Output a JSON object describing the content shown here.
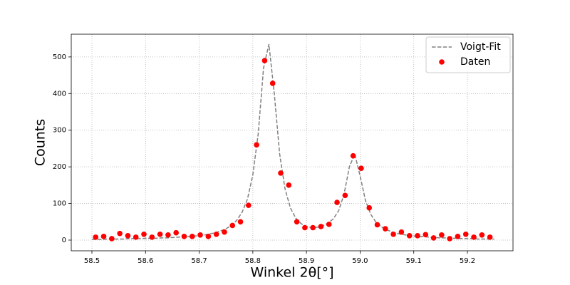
{
  "chart_data": {
    "type": "scatter",
    "xlabel": "Winkel 2θ[°]",
    "ylabel": "Counts",
    "xlim": [
      58.4615,
      59.285
    ],
    "ylim": [
      -29.2,
      562
    ],
    "xticks": [
      58.5,
      58.6,
      58.7,
      58.8,
      58.9,
      {
        "value": 59,
        "label": "59.0"
      },
      59.1,
      59.2
    ],
    "yticks": [
      0,
      100,
      200,
      300,
      400,
      500
    ],
    "grid": true,
    "legend": "upper right",
    "series": [
      {
        "name": "Voigt-Fit",
        "type": "line",
        "linestyle": "dashed",
        "color": "#808080",
        "x": [
          58.5,
          58.51,
          58.52,
          58.53,
          58.54,
          58.55,
          58.56,
          58.57,
          58.58,
          58.59,
          58.6,
          58.61,
          58.62,
          58.63,
          58.64,
          58.65,
          58.66,
          58.67,
          58.68,
          58.69,
          58.7,
          58.71,
          58.72,
          58.73,
          58.74,
          58.75,
          58.76,
          58.77,
          58.78,
          58.79,
          58.8,
          58.81,
          58.82,
          58.83,
          58.84,
          58.85,
          58.86,
          58.87,
          58.88,
          58.89,
          58.9,
          58.91,
          58.92,
          58.93,
          58.94,
          58.95,
          58.96,
          58.97,
          58.98,
          58.99,
          59.0,
          59.01,
          59.02,
          59.03,
          59.04,
          59.05,
          59.06,
          59.07,
          59.08,
          59.09,
          59.1,
          59.11,
          59.12,
          59.13,
          59.14,
          59.15,
          59.16,
          59.17,
          59.18,
          59.19,
          59.2,
          59.21,
          59.22,
          59.23,
          59.24,
          59.25
        ],
        "values": [
          2,
          2,
          2,
          3,
          3,
          3,
          3,
          4,
          4,
          4,
          5,
          5,
          5,
          6,
          6,
          7,
          8,
          9,
          10,
          11,
          12,
          14,
          17,
          20,
          25,
          31,
          40,
          54,
          76,
          112,
          178,
          290,
          470,
          535,
          400,
          235,
          140,
          88,
          60,
          45,
          37,
          34,
          35,
          39,
          46,
          58,
          80,
          125,
          200,
          235,
          175,
          108,
          70,
          48,
          36,
          28,
          22,
          18,
          15,
          13,
          11,
          10,
          9,
          8,
          7,
          6,
          6,
          5,
          5,
          4,
          4,
          4,
          3,
          3,
          3,
          3
        ]
      },
      {
        "name": "Daten",
        "type": "scatter",
        "color": "#ff0000",
        "x": [
          58.507,
          58.522,
          58.537,
          58.552,
          58.567,
          58.582,
          58.597,
          58.612,
          58.627,
          58.642,
          58.657,
          58.672,
          58.687,
          58.702,
          58.717,
          58.732,
          58.747,
          58.762,
          58.777,
          58.792,
          58.807,
          58.822,
          58.837,
          58.852,
          58.867,
          58.882,
          58.897,
          58.912,
          58.927,
          58.942,
          58.957,
          58.972,
          58.987,
          59.002,
          59.017,
          59.032,
          59.047,
          59.062,
          59.077,
          59.092,
          59.107,
          59.122,
          59.137,
          59.152,
          59.167,
          59.182,
          59.197,
          59.212,
          59.227,
          59.242
        ],
        "values": [
          8,
          10,
          4,
          18,
          12,
          8,
          16,
          8,
          16,
          14,
          20,
          10,
          10,
          14,
          10,
          16,
          22,
          40,
          50,
          95,
          260,
          490,
          428,
          183,
          150,
          50,
          34,
          34,
          37,
          43,
          103,
          122,
          230,
          196,
          88,
          42,
          31,
          16,
          22,
          12,
          12,
          15,
          6,
          14,
          4,
          10,
          16,
          8,
          14,
          8
        ]
      }
    ]
  }
}
